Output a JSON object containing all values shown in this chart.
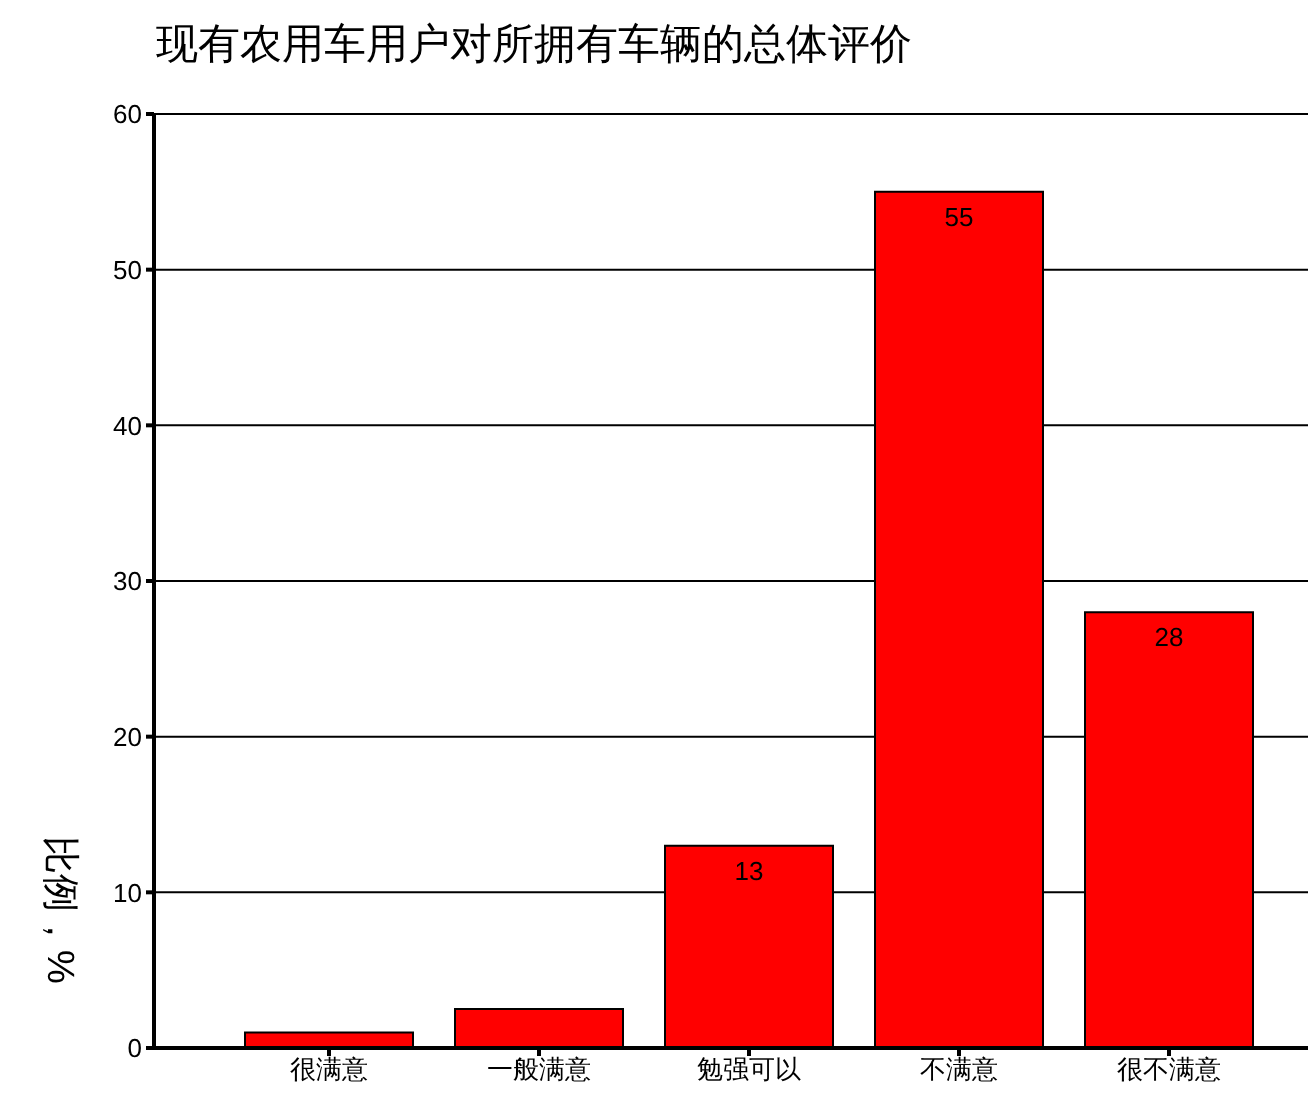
{
  "chart_data": {
    "type": "bar",
    "title": "现有农用车用户对所拥有车辆的总体评价",
    "ylabel": "比例，%",
    "categories": [
      "很满意",
      "一般满意",
      "勉强可以",
      "不满意",
      "很不满意"
    ],
    "values": [
      1.0,
      2.5,
      13,
      55,
      28
    ],
    "value_labels": [
      null,
      null,
      "13",
      "55",
      "28"
    ],
    "color": "#ff0000",
    "ylim": [
      0,
      60
    ],
    "yticks": [
      0,
      10,
      20,
      30,
      40,
      50,
      60
    ],
    "grid": "y"
  }
}
